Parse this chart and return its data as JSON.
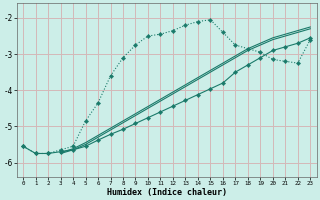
{
  "xlabel": "Humidex (Indice chaleur)",
  "bg_color": "#cceee8",
  "grid_color": "#d4b8b8",
  "line_color": "#1a7a6a",
  "xlim": [
    -0.5,
    23.5
  ],
  "ylim": [
    -6.4,
    -1.6
  ],
  "yticks": [
    -6,
    -5,
    -4,
    -3,
    -2
  ],
  "xticks": [
    0,
    1,
    2,
    3,
    4,
    5,
    6,
    7,
    8,
    9,
    10,
    11,
    12,
    13,
    14,
    15,
    16,
    17,
    18,
    19,
    20,
    21,
    22,
    23
  ],
  "series1_x": [
    0,
    1,
    2,
    3,
    4,
    5,
    6,
    7,
    8,
    9,
    10,
    11,
    12,
    13,
    14,
    15,
    16,
    17,
    18,
    19,
    20,
    21,
    22,
    23
  ],
  "series1_y": [
    -5.55,
    -5.75,
    -5.75,
    -5.65,
    -5.55,
    -4.85,
    -4.35,
    -3.6,
    -3.1,
    -2.75,
    -2.5,
    -2.45,
    -2.35,
    -2.2,
    -2.1,
    -2.05,
    -2.4,
    -2.75,
    -2.85,
    -2.95,
    -3.15,
    -3.2,
    -3.25,
    -2.6
  ],
  "series2_x": [
    0,
    1,
    2,
    3,
    4,
    5,
    6,
    7,
    8,
    9,
    10,
    11,
    12,
    13,
    14,
    15,
    16,
    17,
    18,
    19,
    20,
    21,
    22,
    23
  ],
  "series2_y": [
    -5.55,
    -5.75,
    -5.75,
    -5.7,
    -5.65,
    -5.55,
    -5.38,
    -5.22,
    -5.08,
    -4.92,
    -4.76,
    -4.6,
    -4.44,
    -4.28,
    -4.12,
    -3.96,
    -3.8,
    -3.5,
    -3.3,
    -3.1,
    -2.9,
    -2.8,
    -2.7,
    -2.55
  ],
  "series3_x": [
    3,
    4,
    5,
    6,
    7,
    8,
    9,
    10,
    11,
    12,
    13,
    14,
    15,
    16,
    17,
    18,
    19,
    20,
    21,
    22,
    23
  ],
  "series3_y": [
    -5.75,
    -5.65,
    -5.5,
    -5.3,
    -5.1,
    -4.9,
    -4.7,
    -4.5,
    -4.3,
    -4.1,
    -3.9,
    -3.7,
    -3.5,
    -3.3,
    -3.1,
    -2.9,
    -2.75,
    -2.6,
    -2.5,
    -2.4,
    -2.3
  ],
  "series4_x": [
    3,
    4,
    5,
    6,
    7,
    8,
    9,
    10,
    11,
    12,
    13,
    14,
    15,
    16,
    17,
    18,
    19,
    20,
    21,
    22,
    23
  ],
  "series4_y": [
    -5.72,
    -5.62,
    -5.45,
    -5.25,
    -5.05,
    -4.85,
    -4.65,
    -4.45,
    -4.25,
    -4.05,
    -3.85,
    -3.65,
    -3.45,
    -3.25,
    -3.05,
    -2.85,
    -2.7,
    -2.55,
    -2.45,
    -2.35,
    -2.25
  ]
}
